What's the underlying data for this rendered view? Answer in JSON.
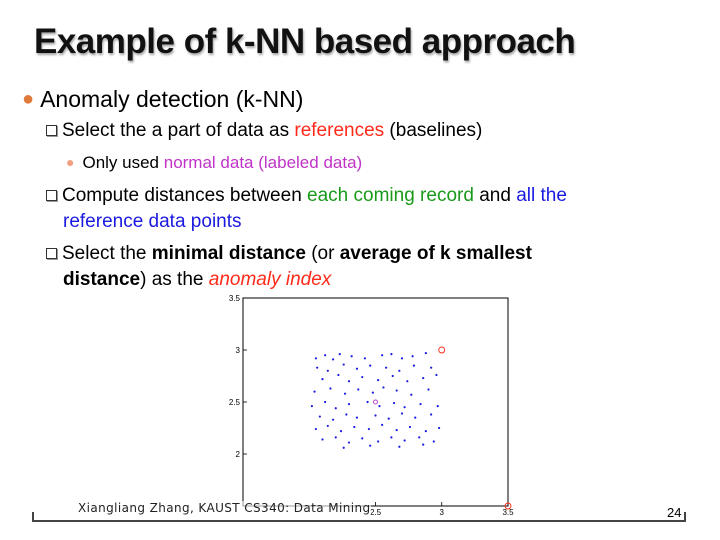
{
  "slide": {
    "title": "Example of k-NN based approach",
    "bullet1": "Anomaly detection (k-NN)",
    "sub1": {
      "pre": "Select the a part of data as ",
      "hl": "references",
      "post": " (baselines)"
    },
    "sub1a": {
      "pre": "Only used ",
      "hl": "normal data (labeled data)"
    },
    "sub2": {
      "pre": "Compute distances between ",
      "hl1": "each coming record",
      "mid": " and ",
      "hl2_line1": "all the",
      "hl2_line2": "reference data points"
    },
    "sub3": {
      "pre": "Select the ",
      "b1": "minimal distance",
      "mid": " (or ",
      "b2_line1": "average of k smallest",
      "b2_line2": "distance",
      "post": ") as the ",
      "hl": "anomaly index"
    },
    "footer": "Xiangliang Zhang, KAUST CS340: Data Mining",
    "page_number": "24"
  },
  "colors": {
    "red": "#ff2a1a",
    "magenta": "#c033c8",
    "green": "#1a9a1a",
    "blue": "#1a1ae0"
  },
  "chart_data": {
    "type": "scatter",
    "xlim": [
      1.5,
      3.5
    ],
    "ylim": [
      1.5,
      3.5
    ],
    "x_ticks": [
      "2.5",
      "3",
      "3.5"
    ],
    "y_ticks": [
      "3.5",
      "3",
      "2.5",
      "2"
    ],
    "series": [
      {
        "marker": "dot",
        "color": "#1a1ae0",
        "points": [
          [
            2.05,
            2.92
          ],
          [
            2.12,
            2.95
          ],
          [
            2.18,
            2.91
          ],
          [
            2.23,
            2.96
          ],
          [
            2.32,
            2.94
          ],
          [
            2.42,
            2.92
          ],
          [
            2.55,
            2.95
          ],
          [
            2.62,
            2.96
          ],
          [
            2.7,
            2.92
          ],
          [
            2.78,
            2.94
          ],
          [
            2.88,
            2.97
          ],
          [
            2.06,
            2.83
          ],
          [
            2.14,
            2.8
          ],
          [
            2.26,
            2.86
          ],
          [
            2.36,
            2.82
          ],
          [
            2.46,
            2.85
          ],
          [
            2.58,
            2.83
          ],
          [
            2.68,
            2.8
          ],
          [
            2.79,
            2.85
          ],
          [
            2.92,
            2.83
          ],
          [
            2.1,
            2.72
          ],
          [
            2.22,
            2.76
          ],
          [
            2.3,
            2.7
          ],
          [
            2.4,
            2.74
          ],
          [
            2.52,
            2.71
          ],
          [
            2.63,
            2.75
          ],
          [
            2.74,
            2.7
          ],
          [
            2.86,
            2.73
          ],
          [
            2.96,
            2.76
          ],
          [
            2.04,
            2.6
          ],
          [
            2.16,
            2.63
          ],
          [
            2.27,
            2.58
          ],
          [
            2.37,
            2.62
          ],
          [
            2.48,
            2.59
          ],
          [
            2.56,
            2.64
          ],
          [
            2.66,
            2.61
          ],
          [
            2.77,
            2.57
          ],
          [
            2.9,
            2.62
          ],
          [
            2.02,
            2.46
          ],
          [
            2.12,
            2.5
          ],
          [
            2.2,
            2.44
          ],
          [
            2.3,
            2.48
          ],
          [
            2.44,
            2.5
          ],
          [
            2.53,
            2.46
          ],
          [
            2.64,
            2.49
          ],
          [
            2.72,
            2.45
          ],
          [
            2.84,
            2.48
          ],
          [
            2.97,
            2.46
          ],
          [
            2.08,
            2.36
          ],
          [
            2.18,
            2.33
          ],
          [
            2.28,
            2.38
          ],
          [
            2.36,
            2.35
          ],
          [
            2.5,
            2.37
          ],
          [
            2.6,
            2.34
          ],
          [
            2.7,
            2.39
          ],
          [
            2.8,
            2.35
          ],
          [
            2.92,
            2.38
          ],
          [
            2.05,
            2.24
          ],
          [
            2.14,
            2.27
          ],
          [
            2.24,
            2.22
          ],
          [
            2.34,
            2.26
          ],
          [
            2.45,
            2.24
          ],
          [
            2.55,
            2.28
          ],
          [
            2.66,
            2.23
          ],
          [
            2.76,
            2.26
          ],
          [
            2.88,
            2.22
          ],
          [
            2.98,
            2.25
          ],
          [
            2.1,
            2.14
          ],
          [
            2.2,
            2.16
          ],
          [
            2.3,
            2.11
          ],
          [
            2.4,
            2.15
          ],
          [
            2.52,
            2.12
          ],
          [
            2.62,
            2.16
          ],
          [
            2.72,
            2.13
          ],
          [
            2.83,
            2.16
          ],
          [
            2.94,
            2.12
          ],
          [
            2.26,
            2.06
          ],
          [
            2.46,
            2.08
          ],
          [
            2.68,
            2.07
          ],
          [
            2.86,
            2.09
          ]
        ]
      },
      {
        "marker": "circle",
        "color": "#ff2a1a",
        "points": [
          [
            3.0,
            3.0
          ],
          [
            3.5,
            1.5
          ]
        ]
      },
      {
        "marker": "circle-small",
        "color": "#c033c8",
        "points": [
          [
            2.5,
            2.5
          ]
        ]
      }
    ]
  }
}
